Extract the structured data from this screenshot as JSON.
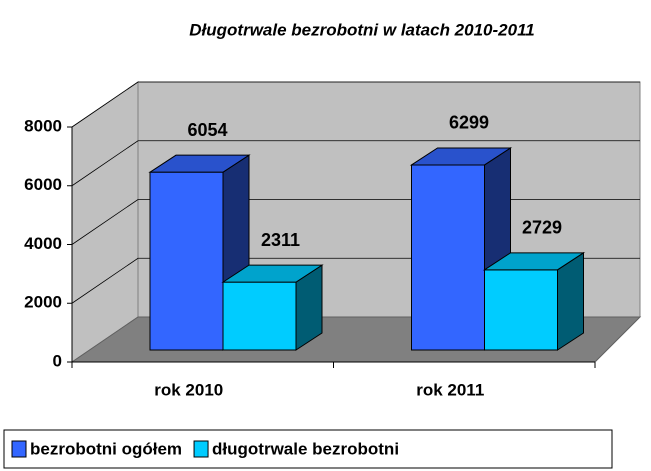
{
  "chart_data": {
    "type": "bar3d",
    "title": "Długotrwale bezrobotni w latach 2010-2011",
    "categories": [
      "rok 2010",
      "rok 2011"
    ],
    "series": [
      {
        "name": "bezrobotni ogółem",
        "color": "#3366ff",
        "values": [
          6054,
          6299
        ]
      },
      {
        "name": "długotrwale bezrobotni",
        "color": "#00ccff",
        "values": [
          2311,
          2729
        ]
      }
    ],
    "ylim": [
      0,
      8000
    ],
    "yticks": [
      0,
      2000,
      4000,
      6000,
      8000
    ],
    "grid": true,
    "legend": "bottom"
  }
}
